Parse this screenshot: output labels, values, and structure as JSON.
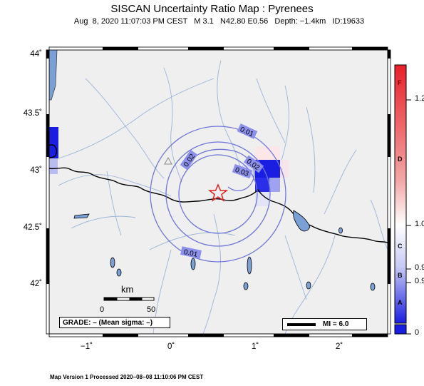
{
  "header": {
    "title": "SISCAN Uncertainty Ratio Map : Pyrenees",
    "subtitle": "Aug  8, 2020 11:07:03 PM CEST   M 3.1   N42.80 E0.56   Depth: −1.4km   ID:19633"
  },
  "footer": "Map Version 1 Processed 2020−08−08 11:10:06 PM CEST",
  "map": {
    "lat_ticks": [
      "44˚",
      "43.5˚",
      "43˚",
      "42.5˚",
      "42˚"
    ],
    "lon_ticks": [
      "−1˚",
      "0˚",
      "1˚",
      "2˚"
    ],
    "epicenter_icon": "star-icon",
    "station_icon": "triangle-icon",
    "contour_labels": [
      "0.01",
      "0.02",
      "0.02",
      "0.03",
      "0.01"
    ],
    "colors": {
      "land": "#efefef",
      "rivers": "#9bb4d8",
      "contours": "#6f76d8",
      "epicenter": "#e0201a",
      "uncertainty_cell": "#1a1ee0"
    }
  },
  "legend": {
    "grade_label": "GRADE: – (Mean sigma: –)",
    "mi_label": "MI = 6.0",
    "scale_unit": "km",
    "scale_start": "0",
    "scale_end": "50"
  },
  "colorbar": {
    "values": [
      "1.2",
      "1.0",
      "0.9",
      "0.9",
      "0"
    ],
    "grades": [
      "F",
      "D",
      "C",
      "B",
      "A"
    ],
    "colors": {
      "top": "#e8202a",
      "mid": "#ffffff",
      "bottom": "#1a1ee0"
    }
  }
}
